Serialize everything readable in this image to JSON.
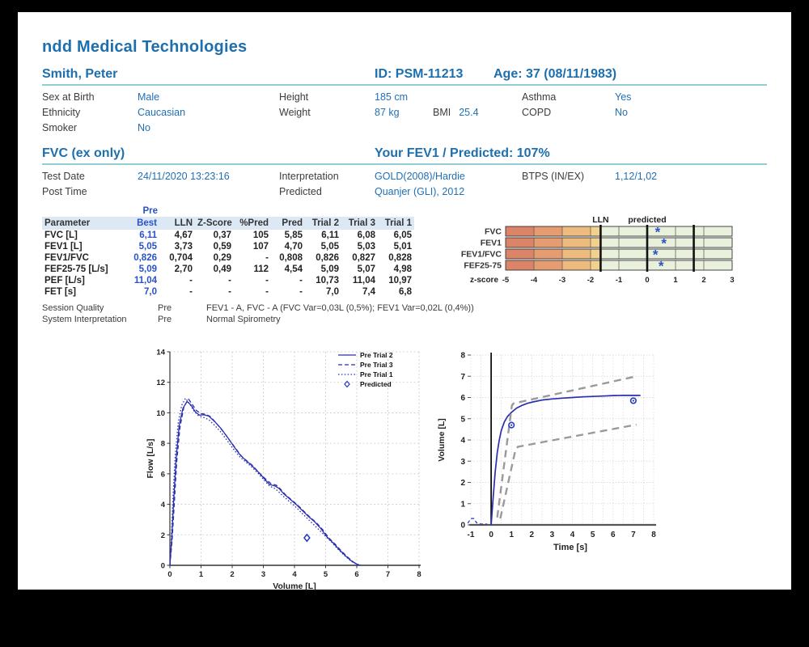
{
  "colors": {
    "accent_blue": "#1d6fae",
    "value_blue": "#2070b5",
    "royal_blue": "#2a52c8",
    "chart_blue": "#2a2fb0",
    "marker_blue": "#2438c0",
    "gray_line": "#9a9a9a",
    "grid_gray": "#c9c9c9",
    "teal_rule": "#8fccd3",
    "table_header_bg": "#dce9f5",
    "band_colors": [
      "#db8468",
      "#e59c70",
      "#eebb7e",
      "#f2d18f"
    ],
    "band_green": "#e9f1dc"
  },
  "header": {
    "company": "ndd Medical Technologies"
  },
  "patient": {
    "name": "Smith, Peter",
    "id_label": "ID: PSM-11213",
    "age_label": "Age: 37 (08/11/1983)",
    "fields": {
      "sex_label": "Sex at Birth",
      "sex": "Male",
      "height_label": "Height",
      "height": "185 cm",
      "asthma_label": "Asthma",
      "asthma": "Yes",
      "ethnicity_label": "Ethnicity",
      "ethnicity": "Caucasian",
      "weight_label": "Weight",
      "weight": "87 kg",
      "bmi_label": "BMI",
      "bmi": "25.4",
      "copd_label": "COPD",
      "copd": "No",
      "smoker_label": "Smoker",
      "smoker": "No"
    }
  },
  "test": {
    "section_title": "FVC (ex only)",
    "result_title": "Your FEV1 / Predicted: 107%",
    "fields": {
      "test_date_label": "Test Date",
      "test_date": "24/11/2020 13:23:16",
      "interpretation_label": "Interpretation",
      "interpretation": "GOLD(2008)/Hardie",
      "btps_label": "BTPS (IN/EX)",
      "btps": "1,12/1,02",
      "post_time_label": "Post Time",
      "post_time": "",
      "predicted_label": "Predicted",
      "predicted": "Quanjer (GLI), 2012"
    }
  },
  "table": {
    "pre_label": "Pre",
    "columns": [
      "Parameter",
      "Best",
      "LLN",
      "Z-Score",
      "%Pred",
      "Pred",
      "Trial 2",
      "Trial 3",
      "Trial 1"
    ],
    "rows": [
      {
        "parameter": "FVC [L]",
        "best": "6,11",
        "lln": "4,67",
        "zscore": "0,37",
        "pct_pred": "105",
        "pred": "5,85",
        "trial2": "6,11",
        "trial3": "6,08",
        "trial1": "6,05"
      },
      {
        "parameter": "FEV1 [L]",
        "best": "5,05",
        "lln": "3,73",
        "zscore": "0,59",
        "pct_pred": "107",
        "pred": "4,70",
        "trial2": "5,05",
        "trial3": "5,03",
        "trial1": "5,01"
      },
      {
        "parameter": "FEV1/FVC",
        "best": "0,826",
        "lln": "0,704",
        "zscore": "0,29",
        "pct_pred": "-",
        "pred": "0,808",
        "trial2": "0,826",
        "trial3": "0,827",
        "trial1": "0,828"
      },
      {
        "parameter": "FEF25-75 [L/s]",
        "best": "5,09",
        "lln": "2,70",
        "zscore": "0,49",
        "pct_pred": "112",
        "pred": "4,54",
        "trial2": "5,09",
        "trial3": "5,07",
        "trial1": "4,98"
      },
      {
        "parameter": "PEF [L/s]",
        "best": "11,04",
        "lln": "-",
        "zscore": "-",
        "pct_pred": "-",
        "pred": "-",
        "trial2": "10,73",
        "trial3": "11,04",
        "trial1": "10,97"
      },
      {
        "parameter": "FET [s]",
        "best": "7,0",
        "lln": "-",
        "zscore": "-",
        "pct_pred": "-",
        "pred": "-",
        "trial2": "7,0",
        "trial3": "7,4",
        "trial1": "6,8"
      }
    ],
    "session_quality_label": "Session Quality",
    "session_quality_phase": "Pre",
    "session_quality": "FEV1 - A, FVC - A (FVC Var=0,03L (0,5%); FEV1 Var=0,02L (0,4%))",
    "system_interpretation_label": "System Interpretation",
    "system_interpretation_phase": "Pre",
    "system_interpretation": "Normal Spirometry"
  },
  "chart_data": [
    {
      "id": "zscore",
      "type": "bar",
      "subtype": "zscore-panel",
      "axis_label": "z-score",
      "lln_label": "LLN",
      "predicted_label": "predicted",
      "xlim": [
        -5,
        3
      ],
      "xticks": [
        -5,
        -4,
        -3,
        -2,
        -1,
        0,
        1,
        2,
        3
      ],
      "lln": -1.645,
      "uln": 1.645,
      "rows": [
        "FVC",
        "FEV1",
        "FEV1/FVC",
        "FEF25-75"
      ],
      "values": [
        0.37,
        0.59,
        0.29,
        0.49
      ]
    },
    {
      "id": "flow_volume",
      "type": "line",
      "xlabel": "Volume [L]",
      "ylabel": "Flow [L/s]",
      "xlim": [
        0,
        8
      ],
      "ylim": [
        0,
        14
      ],
      "xticks": [
        0,
        1,
        2,
        3,
        4,
        5,
        6,
        7,
        8
      ],
      "yticks": [
        0,
        2,
        4,
        6,
        8,
        10,
        12,
        14
      ],
      "legend": [
        "Pre Trial 2",
        "Pre Trial 3",
        "Pre Trial 1",
        "Predicted"
      ],
      "predicted_point": [
        4.4,
        1.8
      ],
      "series": [
        {
          "name": "Pre Trial 2",
          "style": "solid",
          "points": [
            [
              0,
              0
            ],
            [
              0.06,
              1.8
            ],
            [
              0.12,
              4.2
            ],
            [
              0.2,
              7.0
            ],
            [
              0.3,
              9.2
            ],
            [
              0.42,
              10.3
            ],
            [
              0.55,
              10.75
            ],
            [
              0.68,
              10.5
            ],
            [
              0.82,
              10.05
            ],
            [
              0.95,
              9.85
            ],
            [
              1.1,
              9.87
            ],
            [
              1.25,
              9.78
            ],
            [
              1.45,
              9.4
            ],
            [
              1.65,
              8.95
            ],
            [
              1.85,
              8.4
            ],
            [
              2.05,
              7.8
            ],
            [
              2.25,
              7.25
            ],
            [
              2.45,
              6.85
            ],
            [
              2.6,
              6.6
            ],
            [
              2.8,
              6.2
            ],
            [
              3.0,
              5.75
            ],
            [
              3.2,
              5.3
            ],
            [
              3.38,
              5.2
            ],
            [
              3.5,
              5.05
            ],
            [
              3.65,
              4.7
            ],
            [
              3.85,
              4.35
            ],
            [
              4.05,
              4.0
            ],
            [
              4.25,
              3.6
            ],
            [
              4.45,
              3.2
            ],
            [
              4.65,
              2.85
            ],
            [
              4.85,
              2.4
            ],
            [
              5.05,
              1.85
            ],
            [
              5.25,
              1.45
            ],
            [
              5.45,
              1.0
            ],
            [
              5.65,
              0.6
            ],
            [
              5.85,
              0.25
            ],
            [
              6.0,
              0.08
            ],
            [
              6.12,
              0
            ]
          ]
        },
        {
          "name": "Pre Trial 3",
          "style": "dashed",
          "points": [
            [
              0,
              0
            ],
            [
              0.07,
              1.6
            ],
            [
              0.14,
              4.0
            ],
            [
              0.22,
              6.8
            ],
            [
              0.32,
              9.0
            ],
            [
              0.45,
              10.4
            ],
            [
              0.6,
              10.9
            ],
            [
              0.72,
              10.55
            ],
            [
              0.85,
              10.15
            ],
            [
              1.0,
              9.95
            ],
            [
              1.15,
              9.9
            ],
            [
              1.3,
              9.75
            ],
            [
              1.5,
              9.3
            ],
            [
              1.7,
              8.8
            ],
            [
              1.9,
              8.25
            ],
            [
              2.1,
              7.7
            ],
            [
              2.3,
              7.15
            ],
            [
              2.5,
              6.8
            ],
            [
              2.65,
              6.55
            ],
            [
              2.85,
              6.1
            ],
            [
              3.05,
              5.7
            ],
            [
              3.25,
              5.35
            ],
            [
              3.42,
              5.25
            ],
            [
              3.55,
              5.0
            ],
            [
              3.7,
              4.65
            ],
            [
              3.9,
              4.3
            ],
            [
              4.1,
              3.95
            ],
            [
              4.3,
              3.55
            ],
            [
              4.5,
              3.15
            ],
            [
              4.7,
              2.8
            ],
            [
              4.9,
              2.35
            ],
            [
              5.1,
              1.8
            ],
            [
              5.3,
              1.4
            ],
            [
              5.5,
              0.95
            ],
            [
              5.7,
              0.55
            ],
            [
              5.9,
              0.2
            ],
            [
              6.08,
              0
            ]
          ]
        },
        {
          "name": "Pre Trial 1",
          "style": "dotted",
          "points": [
            [
              0,
              0
            ],
            [
              0.05,
              2.0
            ],
            [
              0.1,
              4.5
            ],
            [
              0.17,
              7.2
            ],
            [
              0.27,
              9.4
            ],
            [
              0.38,
              10.5
            ],
            [
              0.5,
              10.95
            ],
            [
              0.63,
              10.6
            ],
            [
              0.78,
              10.1
            ],
            [
              0.92,
              9.8
            ],
            [
              1.08,
              9.7
            ],
            [
              1.25,
              9.55
            ],
            [
              1.45,
              9.15
            ],
            [
              1.65,
              8.7
            ],
            [
              1.85,
              8.15
            ],
            [
              2.05,
              7.6
            ],
            [
              2.25,
              7.1
            ],
            [
              2.45,
              6.75
            ],
            [
              2.6,
              6.5
            ],
            [
              2.8,
              6.1
            ],
            [
              3.0,
              5.65
            ],
            [
              3.2,
              5.2
            ],
            [
              3.4,
              5.0
            ],
            [
              3.6,
              4.6
            ],
            [
              3.8,
              4.25
            ],
            [
              4.0,
              3.9
            ],
            [
              4.2,
              3.5
            ],
            [
              4.4,
              3.1
            ],
            [
              4.6,
              2.7
            ],
            [
              4.8,
              2.3
            ],
            [
              5.0,
              1.9
            ],
            [
              5.2,
              1.5
            ],
            [
              5.4,
              1.05
            ],
            [
              5.6,
              0.65
            ],
            [
              5.8,
              0.3
            ],
            [
              6.05,
              0
            ]
          ]
        }
      ]
    },
    {
      "id": "volume_time",
      "type": "line",
      "xlabel": "Time [s]",
      "ylabel": "Volume [L]",
      "xlim": [
        -1,
        8
      ],
      "ylim": [
        0,
        8
      ],
      "xticks": [
        -1,
        0,
        1,
        2,
        3,
        4,
        5,
        6,
        7,
        8
      ],
      "yticks": [
        0,
        1,
        2,
        3,
        4,
        5,
        6,
        7,
        8
      ],
      "zero_line_x": 0,
      "predicted_points": [
        [
          1,
          4.7
        ],
        [
          7,
          5.85
        ]
      ],
      "series": [
        {
          "name": "volume-curve",
          "style": "solid",
          "color_role": "chart_blue",
          "points": [
            [
              0,
              0
            ],
            [
              0.1,
              1.3
            ],
            [
              0.2,
              2.5
            ],
            [
              0.3,
              3.4
            ],
            [
              0.4,
              4.0
            ],
            [
              0.5,
              4.45
            ],
            [
              0.65,
              4.85
            ],
            [
              0.8,
              5.1
            ],
            [
              1.0,
              5.3
            ],
            [
              1.25,
              5.5
            ],
            [
              1.5,
              5.62
            ],
            [
              1.8,
              5.73
            ],
            [
              2.1,
              5.8
            ],
            [
              2.5,
              5.88
            ],
            [
              3.0,
              5.93
            ],
            [
              3.5,
              5.97
            ],
            [
              4.0,
              6.0
            ],
            [
              4.5,
              6.03
            ],
            [
              5.0,
              6.05
            ],
            [
              5.5,
              6.07
            ],
            [
              6.0,
              6.09
            ],
            [
              6.5,
              6.1
            ],
            [
              7.0,
              6.1
            ],
            [
              7.35,
              6.1
            ]
          ]
        },
        {
          "name": "pre-test-blip",
          "style": "dashed-small",
          "color_role": "chart_blue",
          "points": [
            [
              -1.15,
              0.08
            ],
            [
              -1.0,
              0.3
            ],
            [
              -0.85,
              0.3
            ],
            [
              -0.72,
              0.1
            ],
            [
              -0.5,
              0.04
            ],
            [
              -0.2,
              0.04
            ]
          ]
        },
        {
          "name": "predicted-envelope-upper",
          "style": "dashed-gray",
          "color_role": "gray_line",
          "points": [
            [
              0.3,
              0.35
            ],
            [
              1.02,
              5.62
            ],
            [
              1.1,
              5.72
            ],
            [
              7.15,
              7.0
            ]
          ]
        },
        {
          "name": "predicted-envelope-lower",
          "style": "dashed-gray",
          "color_role": "gray_line",
          "points": [
            [
              0.45,
              0.3
            ],
            [
              1.2,
              3.55
            ],
            [
              1.32,
              3.68
            ],
            [
              7.15,
              4.72
            ]
          ]
        }
      ]
    }
  ]
}
